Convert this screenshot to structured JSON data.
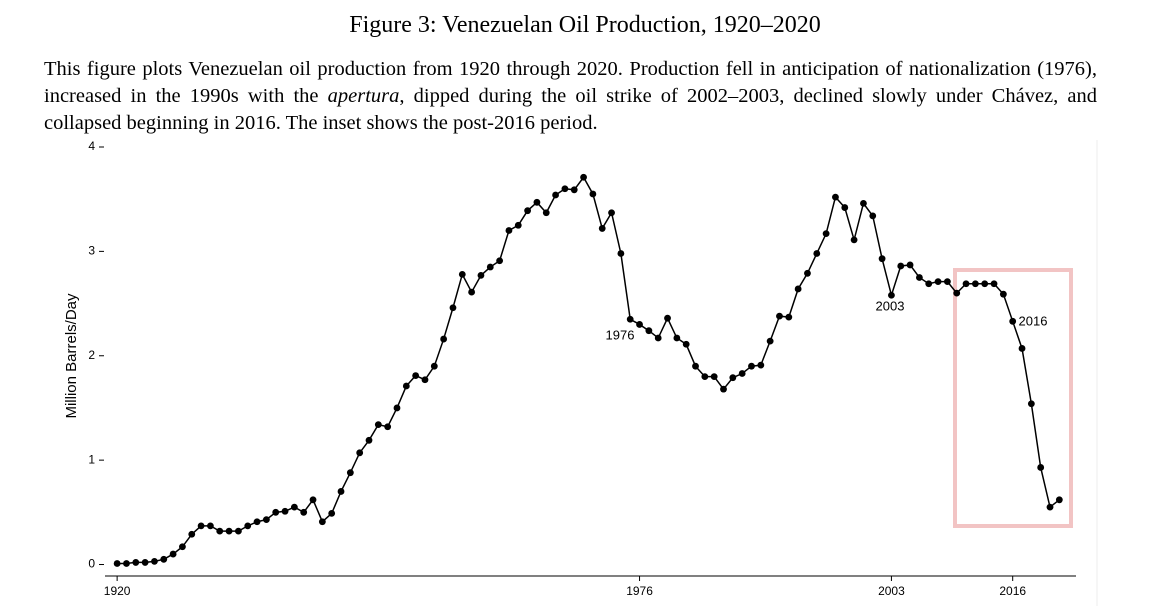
{
  "figure_title": "Figure 3: Venezuelan Oil Production, 1920–2020",
  "caption": [
    "This figure plots Venezuelan oil production from 1920 through 2020. Production fell in anticipation of nationalization (1976), increased in the 1990s with the ",
    "apertura",
    ", dipped during the oil strike of 2002–2003, declined slowly under Chávez, and collapsed beginning in 2016. The inset shows the post-2016 period."
  ],
  "chart_data": {
    "type": "line",
    "ylabel": "Million Barrels/Day",
    "color": "#000000",
    "x": [
      1920,
      1921,
      1922,
      1923,
      1924,
      1925,
      1926,
      1927,
      1928,
      1929,
      1930,
      1931,
      1932,
      1933,
      1934,
      1935,
      1936,
      1937,
      1938,
      1939,
      1940,
      1941,
      1942,
      1943,
      1944,
      1945,
      1946,
      1947,
      1948,
      1949,
      1950,
      1951,
      1952,
      1953,
      1954,
      1955,
      1956,
      1957,
      1958,
      1959,
      1960,
      1961,
      1962,
      1963,
      1964,
      1965,
      1966,
      1967,
      1968,
      1969,
      1970,
      1971,
      1972,
      1973,
      1974,
      1975,
      1976,
      1977,
      1978,
      1979,
      1980,
      1981,
      1982,
      1983,
      1984,
      1985,
      1986,
      1987,
      1988,
      1989,
      1990,
      1991,
      1992,
      1993,
      1994,
      1995,
      1996,
      1997,
      1998,
      1999,
      2000,
      2001,
      2002,
      2003,
      2004,
      2005,
      2006,
      2007,
      2008,
      2009,
      2010,
      2011,
      2012,
      2013,
      2014,
      2015,
      2016,
      2017,
      2018,
      2019,
      2020,
      2021
    ],
    "values": [
      0.01,
      0.01,
      0.02,
      0.02,
      0.03,
      0.05,
      0.1,
      0.17,
      0.29,
      0.37,
      0.37,
      0.32,
      0.32,
      0.32,
      0.37,
      0.41,
      0.43,
      0.5,
      0.51,
      0.55,
      0.5,
      0.62,
      0.41,
      0.49,
      0.7,
      0.88,
      1.07,
      1.19,
      1.34,
      1.32,
      1.5,
      1.71,
      1.81,
      1.77,
      1.9,
      2.16,
      2.46,
      2.78,
      2.61,
      2.77,
      2.85,
      2.91,
      3.2,
      3.25,
      3.39,
      3.47,
      3.37,
      3.54,
      3.6,
      3.59,
      3.71,
      3.55,
      3.22,
      3.37,
      2.98,
      2.35,
      2.3,
      2.24,
      2.17,
      2.36,
      2.17,
      2.11,
      1.9,
      1.8,
      1.8,
      1.68,
      1.79,
      1.83,
      1.9,
      1.91,
      2.14,
      2.38,
      2.37,
      2.64,
      2.79,
      2.98,
      3.17,
      3.52,
      3.42,
      3.11,
      3.46,
      3.34,
      2.93,
      2.58,
      2.86,
      2.87,
      2.75,
      2.69,
      2.71,
      2.71,
      2.6,
      2.69,
      2.69,
      2.69,
      2.69,
      2.59,
      2.33,
      2.07,
      1.54,
      0.93,
      0.55,
      0.62
    ],
    "xlim": [
      1918.7,
      2023
    ],
    "ylim": [
      -0.11,
      4
    ],
    "xticks": [
      1920,
      1976,
      2003,
      2016
    ],
    "yticks": [
      0,
      1,
      2,
      3,
      4
    ],
    "annotations": [
      "1976",
      "2003",
      "2016"
    ]
  }
}
